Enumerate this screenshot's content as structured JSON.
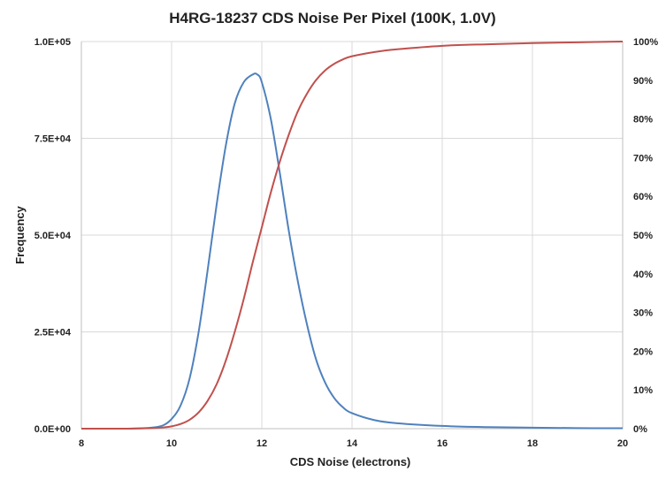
{
  "chart_data": {
    "type": "line",
    "title": "H4RG-18237 CDS Noise Per Pixel (100K, 1.0V)",
    "xlabel": "CDS Noise (electrons)",
    "ylabel": "Frequency",
    "y2label": "",
    "xlim": [
      8,
      20
    ],
    "ylim": [
      0,
      100000
    ],
    "y2lim": [
      0,
      100
    ],
    "grid": true,
    "legend": "none",
    "x_ticks": [
      "8",
      "10",
      "12",
      "14",
      "16",
      "18",
      "20"
    ],
    "y_ticks": [
      "0.0E+00",
      "2.5E+04",
      "5.0E+04",
      "7.5E+04",
      "1.0E+05"
    ],
    "y2_ticks": [
      "0%",
      "10%",
      "20%",
      "30%",
      "40%",
      "50%",
      "60%",
      "70%",
      "80%",
      "90%",
      "100%"
    ],
    "colors": {
      "histogram": "#4f81bd",
      "cumulative": "#c0504d"
    },
    "series": [
      {
        "axis": "left",
        "color": "#4f81bd",
        "x": [
          8,
          9,
          9.5,
          9.8,
          10.0,
          10.2,
          10.4,
          10.6,
          10.8,
          11.0,
          11.2,
          11.4,
          11.6,
          11.8,
          11.9,
          12.0,
          12.2,
          12.4,
          12.6,
          12.8,
          13.0,
          13.2,
          13.4,
          13.6,
          13.8,
          14.0,
          14.5,
          15.0,
          16.0,
          17.0,
          18.0,
          19.0,
          20.0
        ],
        "values": [
          0,
          0,
          200,
          800,
          2500,
          6000,
          13000,
          25000,
          41000,
          58000,
          73000,
          84000,
          89500,
          91500,
          91500,
          89500,
          80000,
          66000,
          51000,
          38000,
          27000,
          18000,
          12000,
          8000,
          5500,
          4000,
          2200,
          1400,
          700,
          400,
          250,
          150,
          100
        ]
      },
      {
        "axis": "right",
        "color": "#c0504d",
        "x": [
          8,
          9,
          9.5,
          9.8,
          10.0,
          10.2,
          10.4,
          10.6,
          10.8,
          11.0,
          11.2,
          11.4,
          11.6,
          11.8,
          12.0,
          12.2,
          12.4,
          12.6,
          12.8,
          13.0,
          13.2,
          13.4,
          13.6,
          13.8,
          14.0,
          14.5,
          15.0,
          16.0,
          17.0,
          18.0,
          19.0,
          20.0
        ],
        "values": [
          0,
          0,
          0.1,
          0.3,
          0.6,
          1.2,
          2.3,
          4.2,
          7.2,
          11.5,
          17.5,
          25,
          33.5,
          43,
          52,
          61,
          69,
          76,
          82,
          86.5,
          90,
          92.5,
          94.2,
          95.4,
          96.2,
          97.3,
          98.0,
          98.9,
          99.3,
          99.6,
          99.8,
          100
        ]
      }
    ]
  }
}
